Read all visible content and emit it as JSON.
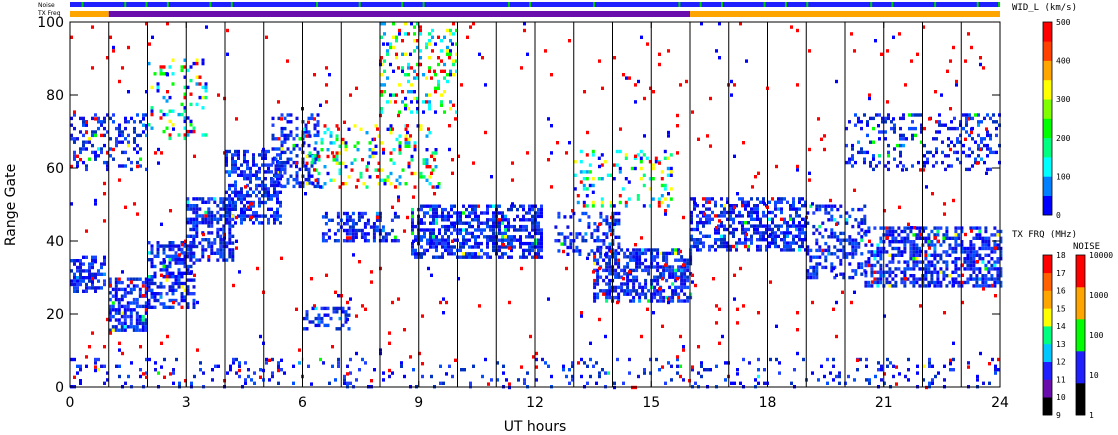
{
  "header": {
    "noise_label": "Noise",
    "txfreq_label": "TX Freq"
  },
  "chart_data": {
    "type": "heatmap",
    "title": "",
    "xlabel": "UT hours",
    "ylabel": "Range Gate",
    "xlim": [
      0,
      24
    ],
    "ylim": [
      0,
      100
    ],
    "x_ticks": [
      "0",
      "3",
      "6",
      "9",
      "12",
      "15",
      "18",
      "21",
      "24"
    ],
    "y_ticks": [
      "0",
      "20",
      "40",
      "60",
      "80",
      "100"
    ],
    "grid": "vertical lines at hourly scan boundaries",
    "hour_markers": [
      1,
      2,
      3,
      4,
      5,
      6,
      7,
      8,
      9,
      10,
      11,
      12,
      13,
      14,
      15,
      16,
      17,
      18,
      19,
      20,
      21,
      22,
      23
    ],
    "tx_freq_bar": [
      {
        "from": 0,
        "to": 1,
        "color": "#ffa500"
      },
      {
        "from": 1,
        "to": 16,
        "color": "#6a0dad"
      },
      {
        "from": 16,
        "to": 24,
        "color": "#ffa500"
      }
    ],
    "echo_bands": [
      {
        "x": [
          0.0,
          0.9
        ],
        "y": [
          26,
          36
        ],
        "density": 0.6,
        "tint": "blue"
      },
      {
        "x": [
          1.0,
          2.0
        ],
        "y": [
          16,
          30
        ],
        "density": 0.65,
        "tint": "blue"
      },
      {
        "x": [
          2.0,
          3.2
        ],
        "y": [
          22,
          40
        ],
        "density": 0.55,
        "tint": "blue"
      },
      {
        "x": [
          3.0,
          4.2
        ],
        "y": [
          35,
          52
        ],
        "density": 0.55,
        "tint": "blue"
      },
      {
        "x": [
          4.0,
          5.4
        ],
        "y": [
          45,
          65
        ],
        "density": 0.55,
        "tint": "blue"
      },
      {
        "x": [
          5.2,
          6.4
        ],
        "y": [
          55,
          75
        ],
        "density": 0.35,
        "tint": "blue"
      },
      {
        "x": [
          6.5,
          8.5
        ],
        "y": [
          40,
          48
        ],
        "density": 0.45,
        "tint": "blue"
      },
      {
        "x": [
          8.8,
          12.2
        ],
        "y": [
          36,
          50
        ],
        "density": 0.6,
        "tint": "blue"
      },
      {
        "x": [
          12.5,
          14.2
        ],
        "y": [
          36,
          48
        ],
        "density": 0.35,
        "tint": "blue"
      },
      {
        "x": [
          13.5,
          16.0
        ],
        "y": [
          24,
          38
        ],
        "density": 0.6,
        "tint": "blue"
      },
      {
        "x": [
          16.0,
          19.0
        ],
        "y": [
          38,
          52
        ],
        "density": 0.55,
        "tint": "blue"
      },
      {
        "x": [
          19.0,
          20.5
        ],
        "y": [
          30,
          50
        ],
        "density": 0.35,
        "tint": "blue"
      },
      {
        "x": [
          20.5,
          24.0
        ],
        "y": [
          28,
          44
        ],
        "density": 0.55,
        "tint": "blue"
      },
      {
        "x": [
          0.0,
          2.0
        ],
        "y": [
          60,
          75
        ],
        "density": 0.25,
        "tint": "blue"
      },
      {
        "x": [
          2.0,
          3.5
        ],
        "y": [
          68,
          90
        ],
        "density": 0.2,
        "tint": "mixed"
      },
      {
        "x": [
          6.0,
          9.5
        ],
        "y": [
          55,
          72
        ],
        "density": 0.2,
        "tint": "mixed"
      },
      {
        "x": [
          8.0,
          10.0
        ],
        "y": [
          75,
          100
        ],
        "density": 0.2,
        "tint": "mixed"
      },
      {
        "x": [
          13.0,
          15.5
        ],
        "y": [
          50,
          65
        ],
        "density": 0.2,
        "tint": "mixed"
      },
      {
        "x": [
          20.0,
          24.0
        ],
        "y": [
          60,
          75
        ],
        "density": 0.25,
        "tint": "blue"
      },
      {
        "x": [
          6.0,
          7.2
        ],
        "y": [
          16,
          22
        ],
        "density": 0.35,
        "tint": "blue"
      },
      {
        "x": [
          0.0,
          24.0
        ],
        "y": [
          0,
          8
        ],
        "density": 0.12,
        "tint": "blue"
      },
      {
        "x": [
          0.0,
          24.0
        ],
        "y": [
          0,
          100
        ],
        "density": 0.015,
        "tint": "red"
      }
    ],
    "colorbars": [
      {
        "label": "WID_L (km/s)",
        "ticks": [
          "0",
          "100",
          "200",
          "300",
          "400",
          "500"
        ],
        "colors": [
          "#0000ff",
          "#0080ff",
          "#00ffff",
          "#00ff80",
          "#00ff00",
          "#80ff00",
          "#ffff00",
          "#ffa500",
          "#ff4000",
          "#ff0000"
        ]
      },
      {
        "label": "TX FRQ (MHz)",
        "ticks": [
          "9",
          "10",
          "11",
          "12",
          "13",
          "14",
          "15",
          "16",
          "17",
          "18"
        ],
        "colors": [
          "#000000",
          "#6a0dad",
          "#2020ff",
          "#00c8ff",
          "#00ff80",
          "#ffff00",
          "#ffa500",
          "#ff6000",
          "#ff0000"
        ]
      },
      {
        "label": "NOISE",
        "ticks": [
          "1",
          "10",
          "100",
          "1000",
          "10000"
        ],
        "colors": [
          "#000000",
          "#2020ff",
          "#00ff00",
          "#ffa500",
          "#ff0000"
        ]
      }
    ]
  }
}
